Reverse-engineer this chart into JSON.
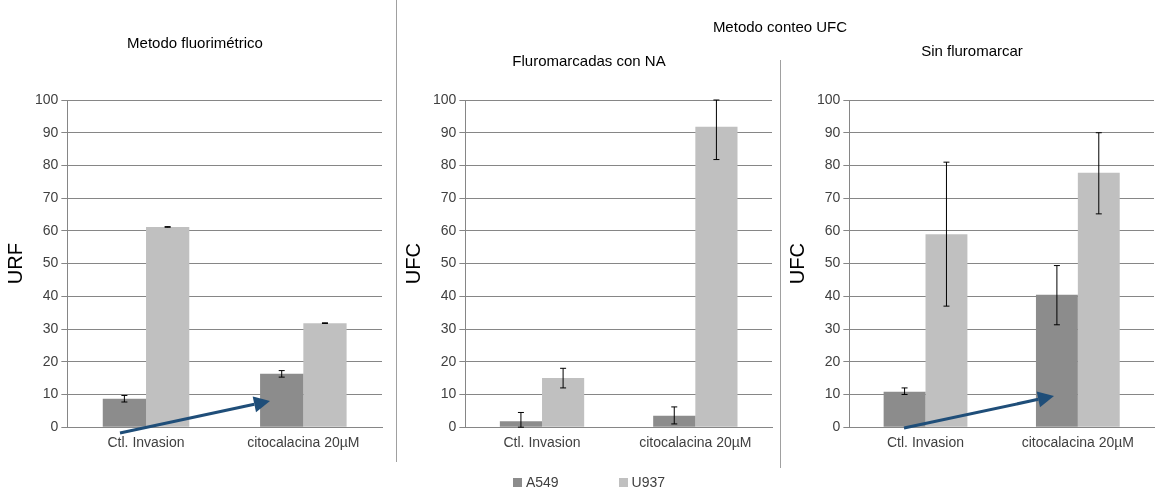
{
  "chart_data": [
    {
      "type": "bar",
      "title": "Metodo fluorimétrico",
      "ylabel": "URF",
      "categories": [
        "Ctl. Invasion",
        "citocalacina 20µM"
      ],
      "series": [
        {
          "color": "#8c8c8c",
          "values": [
            8.7,
            16.3
          ],
          "errors": [
            [
              7.7,
              9.7
            ],
            [
              15.3,
              17.3
            ]
          ]
        },
        {
          "color": "#c0c0c0",
          "values": [
            61.2,
            31.8
          ],
          "errors": [
            [
              61.1,
              61.3
            ],
            [
              31.7,
              31.9
            ]
          ]
        }
      ],
      "ylim": [
        0,
        100
      ],
      "yticks": [
        0,
        10,
        20,
        30,
        40,
        50,
        60,
        70,
        80,
        90,
        100
      ],
      "grid": "y",
      "legend": false
    },
    {
      "type": "bar",
      "title": "Metodo conteo UFC",
      "subtitle": "Fluromarcadas con NA",
      "ylabel": "UFC",
      "categories": [
        "Ctl. Invasion",
        "citocalacina 20µM"
      ],
      "series": [
        {
          "name": "A549",
          "color": "#8c8c8c",
          "values": [
            1.8,
            3.5
          ],
          "errors": [
            [
              0,
              4.5
            ],
            [
              1,
              6.2
            ]
          ]
        },
        {
          "name": "U937",
          "color": "#c0c0c0",
          "values": [
            15,
            91.8
          ],
          "errors": [
            [
              12,
              18
            ],
            [
              81.8,
              100
            ]
          ]
        }
      ],
      "ylim": [
        0,
        100
      ],
      "yticks": [
        0,
        10,
        20,
        30,
        40,
        50,
        60,
        70,
        80,
        90,
        100
      ],
      "grid": "y",
      "legend": "bottom"
    },
    {
      "type": "bar",
      "title": "Sin fluromarcar",
      "ylabel": "UFC",
      "categories": [
        "Ctl. Invasion",
        "citocalacina 20µM"
      ],
      "series": [
        {
          "color": "#8c8c8c",
          "values": [
            10.8,
            40.5
          ],
          "errors": [
            [
              10,
              12
            ],
            [
              31.3,
              49.4
            ]
          ]
        },
        {
          "color": "#c0c0c0",
          "values": [
            59,
            77.8
          ],
          "errors": [
            [
              37,
              81
            ],
            [
              65.2,
              90
            ]
          ]
        }
      ],
      "ylim": [
        0,
        100
      ],
      "yticks": [
        0,
        10,
        20,
        30,
        40,
        50,
        60,
        70,
        80,
        90,
        100
      ],
      "grid": "y",
      "legend": false
    }
  ]
}
